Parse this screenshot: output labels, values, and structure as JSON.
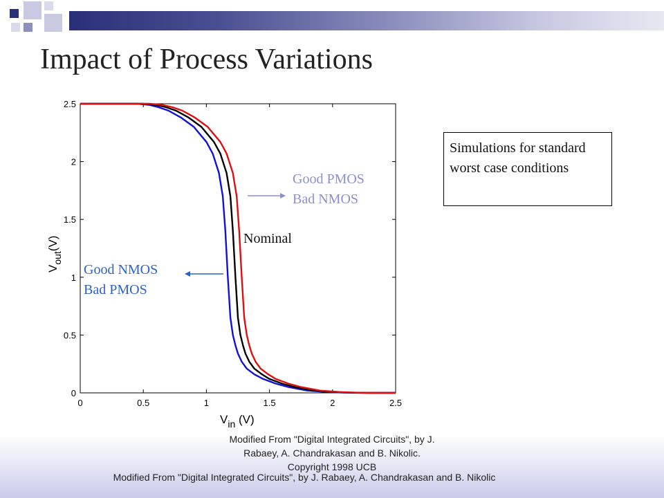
{
  "slide": {
    "title": "Impact of Process Variations",
    "note": "Simulations for standard worst case conditions",
    "caption_upper": "Modified From \"Digital Integrated Circuits\", by J. Rabaey, A. Chandrakasan and B. Nikolic. Copyright 1998 UCB",
    "caption_lower": "Modified From \"Digital Integrated Circuits\", by J. Rabaey, A. Chandrakasan and B. Nikolic"
  },
  "colors": {
    "accent_dark": "#2a2f78",
    "accent_light": "#c9cae2",
    "annotation": "#8a8fd0"
  },
  "chart_data": {
    "type": "line",
    "xlabel_main": "V",
    "xlabel_sub": "in",
    "xlabel_unit": " (V)",
    "ylabel_main": "V",
    "ylabel_sub": "out",
    "ylabel_unit": "(V)",
    "xlim": [
      0,
      2.5
    ],
    "ylim": [
      0,
      2.5
    ],
    "xticks": [
      "0",
      "0.5",
      "1",
      "1.5",
      "2",
      "2.5"
    ],
    "yticks": [
      "0",
      "0.5",
      "1",
      "1.5",
      "2",
      "2.5"
    ],
    "grid": false,
    "series": [
      {
        "color": "#1010dd",
        "x": [
          0,
          0.3,
          0.45,
          0.55,
          0.62,
          0.7,
          0.8,
          0.9,
          1.0,
          1.05,
          1.1,
          1.13,
          1.15,
          1.17,
          1.19,
          1.21,
          1.23,
          1.25,
          1.28,
          1.32,
          1.38,
          1.45,
          1.55,
          1.65,
          1.8,
          1.95,
          2.1,
          2.3,
          2.5
        ],
        "y": [
          2.5,
          2.5,
          2.5,
          2.49,
          2.47,
          2.44,
          2.38,
          2.3,
          2.17,
          2.07,
          1.9,
          1.7,
          1.4,
          1.0,
          0.65,
          0.5,
          0.41,
          0.34,
          0.27,
          0.21,
          0.16,
          0.12,
          0.08,
          0.05,
          0.02,
          0.008,
          0.002,
          0,
          0
        ]
      },
      {
        "color": "#000000",
        "x": [
          0,
          0.35,
          0.5,
          0.6,
          0.68,
          0.76,
          0.86,
          0.96,
          1.06,
          1.11,
          1.16,
          1.19,
          1.21,
          1.23,
          1.25,
          1.27,
          1.29,
          1.31,
          1.34,
          1.38,
          1.44,
          1.5,
          1.6,
          1.7,
          1.85,
          2.0,
          2.15,
          2.3,
          2.5
        ],
        "y": [
          2.5,
          2.5,
          2.5,
          2.49,
          2.47,
          2.44,
          2.38,
          2.3,
          2.17,
          2.07,
          1.9,
          1.7,
          1.4,
          1.0,
          0.65,
          0.5,
          0.41,
          0.34,
          0.27,
          0.21,
          0.16,
          0.12,
          0.08,
          0.05,
          0.02,
          0.008,
          0.002,
          0,
          0
        ]
      },
      {
        "color": "#dd1010",
        "x": [
          0,
          0.4,
          0.55,
          0.65,
          0.73,
          0.81,
          0.91,
          1.01,
          1.11,
          1.16,
          1.21,
          1.24,
          1.26,
          1.28,
          1.3,
          1.32,
          1.34,
          1.36,
          1.39,
          1.43,
          1.49,
          1.55,
          1.65,
          1.75,
          1.9,
          2.05,
          2.2,
          2.35,
          2.5
        ],
        "y": [
          2.5,
          2.5,
          2.5,
          2.49,
          2.47,
          2.44,
          2.38,
          2.3,
          2.17,
          2.07,
          1.9,
          1.7,
          1.4,
          1.0,
          0.65,
          0.5,
          0.41,
          0.34,
          0.27,
          0.21,
          0.16,
          0.12,
          0.08,
          0.05,
          0.02,
          0.008,
          0.002,
          0,
          0
        ]
      }
    ],
    "annotations": {
      "good_pmos": "Good PMOS",
      "bad_nmos": "Bad NMOS",
      "nominal": "Nominal",
      "good_nmos": "Good NMOS",
      "bad_pmos": "Bad PMOS"
    }
  }
}
